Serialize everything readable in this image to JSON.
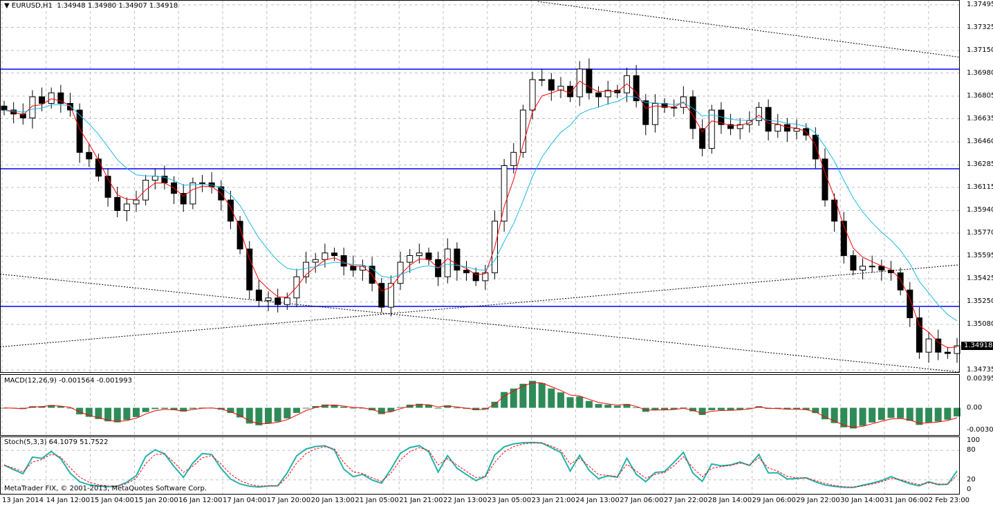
{
  "header": {
    "symbol": "EURUSD,H1",
    "open": "1.34948",
    "high": "1.34980",
    "low": "1.34907",
    "close": "1.34918"
  },
  "copyright": "MetaTrader FIX, © 2001-2013, MetaQuotes Software Corp.",
  "colors": {
    "bull": "#000000",
    "bear": "#000000",
    "ma_fast": "#ff0000",
    "ma_slow": "#1ab8e8",
    "level": "#0000ff",
    "macd_hist": "#2e8b57",
    "macd_signal": "#ff0000",
    "stoch_main": "#20b2aa",
    "stoch_signal": "#ff0000",
    "grid": "#c0c0c0"
  },
  "chart_data": [
    {
      "type": "candlestick",
      "title": "EURUSD,H1",
      "price_ticks": [
        "1.37495",
        "1.37325",
        "1.37150",
        "1.36980",
        "1.36805",
        "1.36635",
        "1.36460",
        "1.36285",
        "1.36115",
        "1.35940",
        "1.35770",
        "1.35595",
        "1.35425",
        "1.35250",
        "1.35080",
        "1.34735"
      ],
      "ylim": [
        1.34735,
        1.37495
      ],
      "current_price": "1.34918",
      "x_labels": [
        "13 Jan 2014",
        "14 Jan 12:00",
        "15 Jan 04:00",
        "15 Jan 20:00",
        "16 Jan 12:00",
        "17 Jan 04:00",
        "17 Jan 20:00",
        "20 Jan 13:00",
        "21 Jan 05:00",
        "21 Jan 21:00",
        "22 Jan 13:00",
        "23 Jan 05:00",
        "23 Jan 21:00",
        "24 Jan 13:00",
        "27 Jan 06:00",
        "27 Jan 22:00",
        "28 Jan 14:00",
        "29 Jan 06:00",
        "29 Jan 22:00",
        "30 Jan 14:00",
        "31 Jan 06:00",
        "2 Feb 23:00"
      ],
      "closes": [
        1.367,
        1.3667,
        1.3664,
        1.368,
        1.3675,
        1.3683,
        1.3675,
        1.367,
        1.3638,
        1.3633,
        1.362,
        1.3604,
        1.3594,
        1.3599,
        1.3602,
        1.3617,
        1.362,
        1.3615,
        1.3607,
        1.3599,
        1.3615,
        1.3615,
        1.3612,
        1.3602,
        1.3586,
        1.3565,
        1.3534,
        1.3526,
        1.3528,
        1.3523,
        1.3528,
        1.3544,
        1.3555,
        1.3557,
        1.3562,
        1.356,
        1.3552,
        1.3549,
        1.3552,
        1.3539,
        1.3521,
        1.3539,
        1.3555,
        1.356,
        1.3562,
        1.3557,
        1.3544,
        1.3565,
        1.3549,
        1.3547,
        1.3541,
        1.3547,
        1.3586,
        1.3628,
        1.3638,
        1.367,
        1.3693,
        1.3693,
        1.3685,
        1.3688,
        1.368,
        1.3701,
        1.3683,
        1.368,
        1.3685,
        1.3683,
        1.3696,
        1.3677,
        1.3659,
        1.3675,
        1.3672,
        1.3672,
        1.368,
        1.3656,
        1.3641,
        1.367,
        1.3659,
        1.3656,
        1.3659,
        1.3662,
        1.3672,
        1.3654,
        1.3659,
        1.3654,
        1.3656,
        1.3651,
        1.3633,
        1.3602,
        1.3586,
        1.356,
        1.3549,
        1.3552,
        1.3552,
        1.3549,
        1.3547,
        1.3534,
        1.3513,
        1.3487,
        1.3497,
        1.3487,
        1.3486,
        1.34918
      ],
      "horizontal_levels": [
        1.37009,
        1.36256,
        1.35216
      ],
      "trendlines": [
        {
          "from_price": 1.3546,
          "to_price": 1.3472,
          "from_index": 0
        },
        {
          "from_price": 1.3491,
          "to_price": 1.3553,
          "from_index": 0
        },
        {
          "from_price": 1.3752,
          "to_price": 1.371,
          "from_index": 57
        }
      ]
    },
    {
      "type": "bar+line",
      "title": "MACD(12,26,9) -0.001564 -0.001993",
      "ticks": [
        "0.003953",
        "0.00",
        "-0.003083"
      ],
      "ylim": [
        -0.003083,
        0.003953
      ]
    },
    {
      "type": "line",
      "title": "Stoch(5,3,3) 64.1079 51.7522",
      "ticks": [
        "100",
        "80",
        "20",
        "0"
      ],
      "ylim": [
        0,
        100
      ]
    }
  ]
}
